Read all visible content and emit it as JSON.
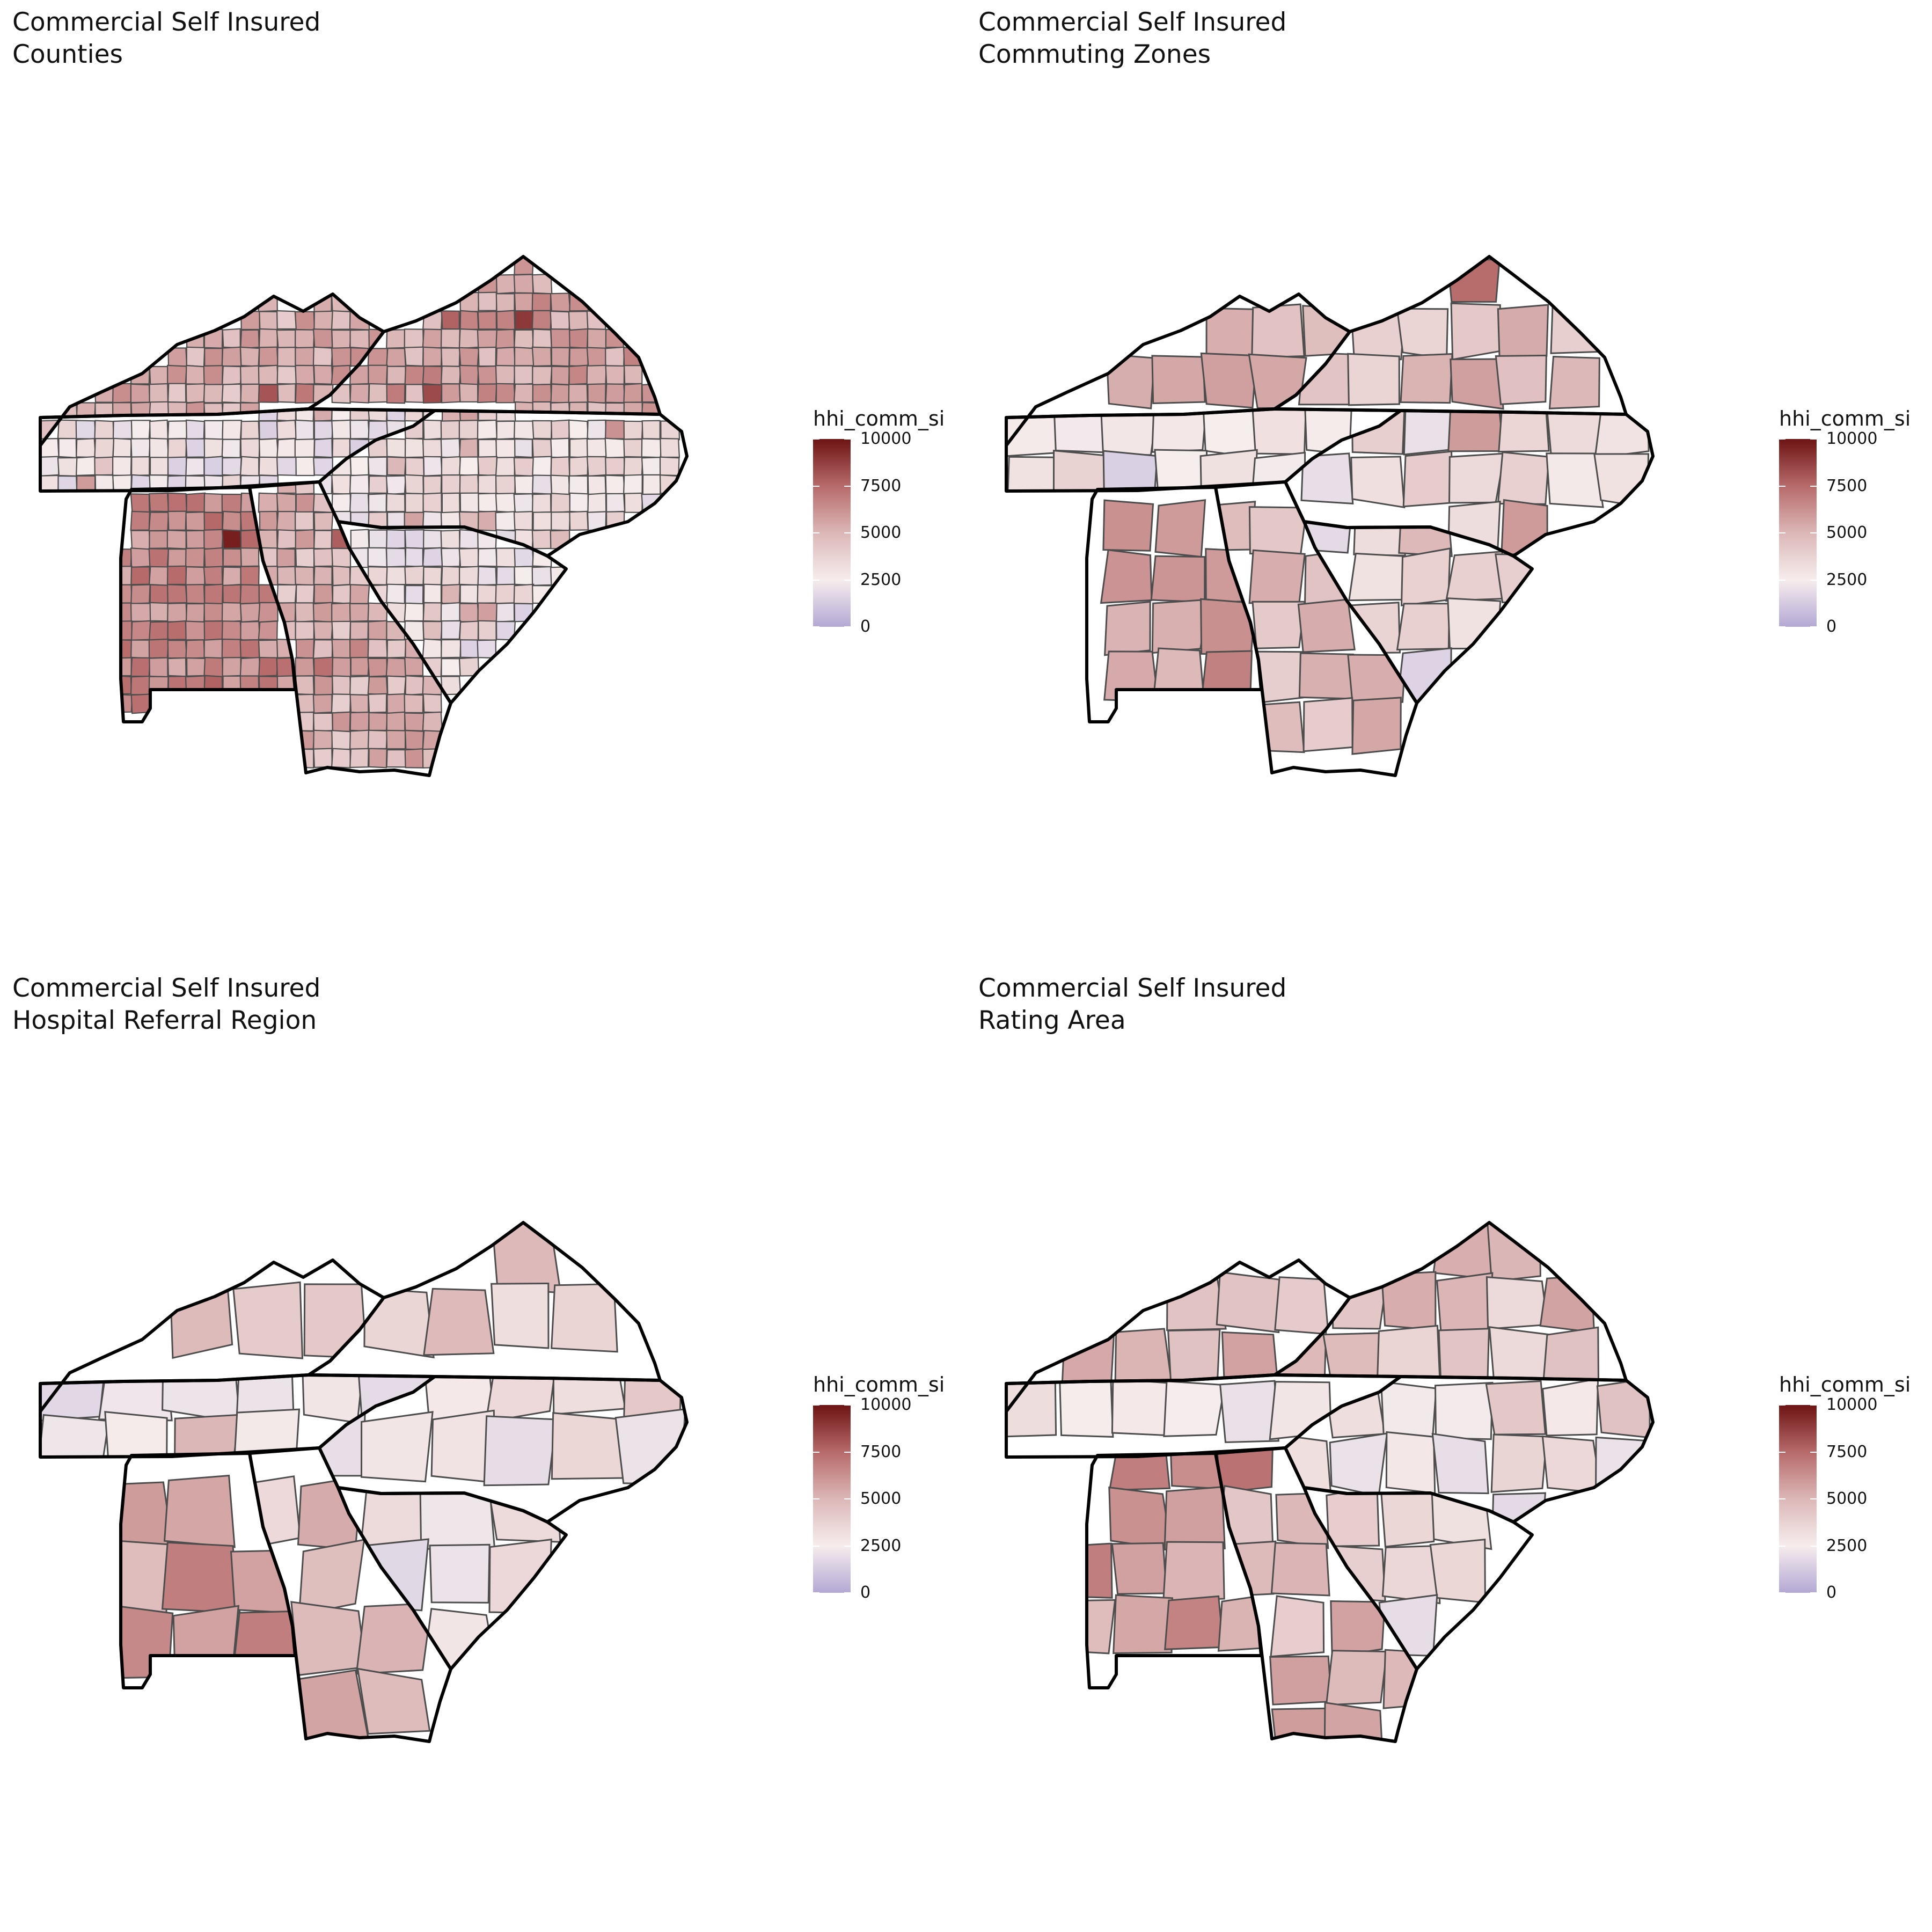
{
  "figure": {
    "background": "#ffffff",
    "panels": [
      {
        "title": "Commercial Self Insured",
        "subtitle": "Counties",
        "legend_title": "hhi_comm_si",
        "legend_placement": "right"
      },
      {
        "title": "Commercial Self Insured",
        "subtitle": "Commuting Zones",
        "legend_title": "hhi_comm_si",
        "legend_placement": "right"
      },
      {
        "title": "Commercial Self Insured",
        "subtitle": "Hospital Referral Region",
        "legend_title": "hhi_comm_si",
        "legend_placement": "right"
      },
      {
        "title": "Commercial Self Insured",
        "subtitle": "Rating Area",
        "legend_title": "hhi_comm_si",
        "legend_placement": "right"
      }
    ]
  },
  "legend": {
    "title": "hhi_comm_si",
    "ticks": [
      10000,
      7500,
      5000,
      2500,
      0
    ],
    "tick_labels": [
      "10000",
      "7500",
      "5000",
      "2500",
      "0"
    ],
    "range": [
      0,
      10000
    ],
    "colors": {
      "high": "#6e1414",
      "upper_mid": "#b76a6a",
      "mid": "#dcb7b7",
      "low_mid": "#f6eded",
      "low": "#b4a8d4"
    }
  },
  "map_style": {
    "state_border_color": "#000000",
    "region_border_color": "#4d4d4d"
  },
  "chart_data": [
    {
      "type": "heatmap",
      "title": "Commercial Self Insured",
      "subtitle": "Counties",
      "legend_title": "hhi_comm_si",
      "scale_range": [
        0,
        10000
      ],
      "region_values_by_state": {
        "KY": 5200,
        "VA": 5600,
        "TN": 2600,
        "NC": 3000,
        "SC": 2700,
        "AL": 6400,
        "GA": 5000
      }
    },
    {
      "type": "heatmap",
      "title": "Commercial Self Insured",
      "subtitle": "Commuting Zones",
      "legend_title": "hhi_comm_si",
      "scale_range": [
        0,
        10000
      ],
      "region_values_by_state": {
        "KY": 4800,
        "VA": 4600,
        "TN": 2600,
        "NC": 3100,
        "SC": 2700,
        "AL": 6100,
        "GA": 4900
      }
    },
    {
      "type": "heatmap",
      "title": "Commercial Self Insured",
      "subtitle": "Hospital Referral Region",
      "legend_title": "hhi_comm_si",
      "scale_range": [
        0,
        10000
      ],
      "region_values_by_state": {
        "KY": 4300,
        "VA": 4200,
        "TN": 2600,
        "NC": 3000,
        "SC": 2600,
        "AL": 5900,
        "GA": 4600
      }
    },
    {
      "type": "heatmap",
      "title": "Commercial Self Insured",
      "subtitle": "Rating Area",
      "legend_title": "hhi_comm_si",
      "scale_range": [
        0,
        10000
      ],
      "region_values_by_state": {
        "KY": 4600,
        "VA": 4500,
        "TN": 2600,
        "NC": 3000,
        "SC": 2800,
        "AL": 5800,
        "GA": 4700
      }
    }
  ]
}
